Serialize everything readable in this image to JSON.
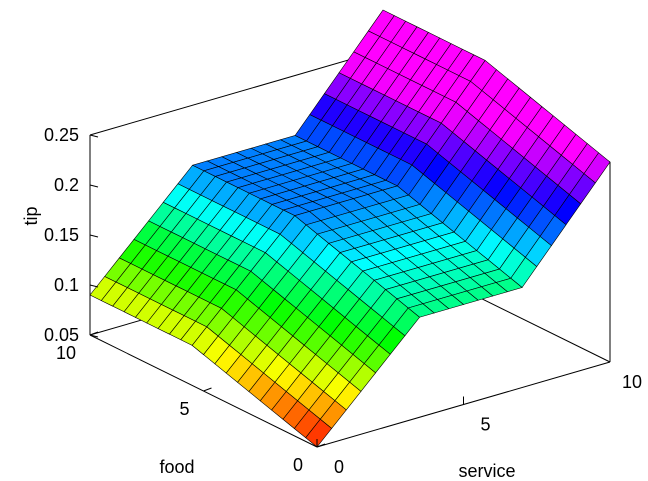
{
  "chart_data": {
    "type": "surface",
    "title": "",
    "xlabel": "service",
    "ylabel": "food",
    "zlabel": "tip",
    "xlim": [
      0,
      10
    ],
    "ylim": [
      0,
      10
    ],
    "zlim": [
      0.05,
      0.25
    ],
    "x_ticks": [
      0,
      5,
      10
    ],
    "y_ticks": [
      0,
      5,
      10
    ],
    "z_ticks": [
      0.05,
      0.1,
      0.15,
      0.2,
      0.25
    ],
    "x_tick_labels": [
      "0",
      "5",
      "10"
    ],
    "y_tick_labels": [
      "0",
      "5",
      "10"
    ],
    "z_tick_labels": [
      "0.05",
      "0.1",
      "0.15",
      "0.2",
      "0.25"
    ],
    "colormap": "hsv",
    "grid_size": 21,
    "service_profile": {
      "x": [
        0,
        3.5,
        7,
        10
      ],
      "tip": [
        0.05,
        0.15,
        0.15,
        0.25
      ]
    },
    "food_profile": {
      "y": [
        0,
        5.5,
        10
      ],
      "offset": [
        0,
        0.04,
        0.04
      ]
    },
    "grid": false
  }
}
